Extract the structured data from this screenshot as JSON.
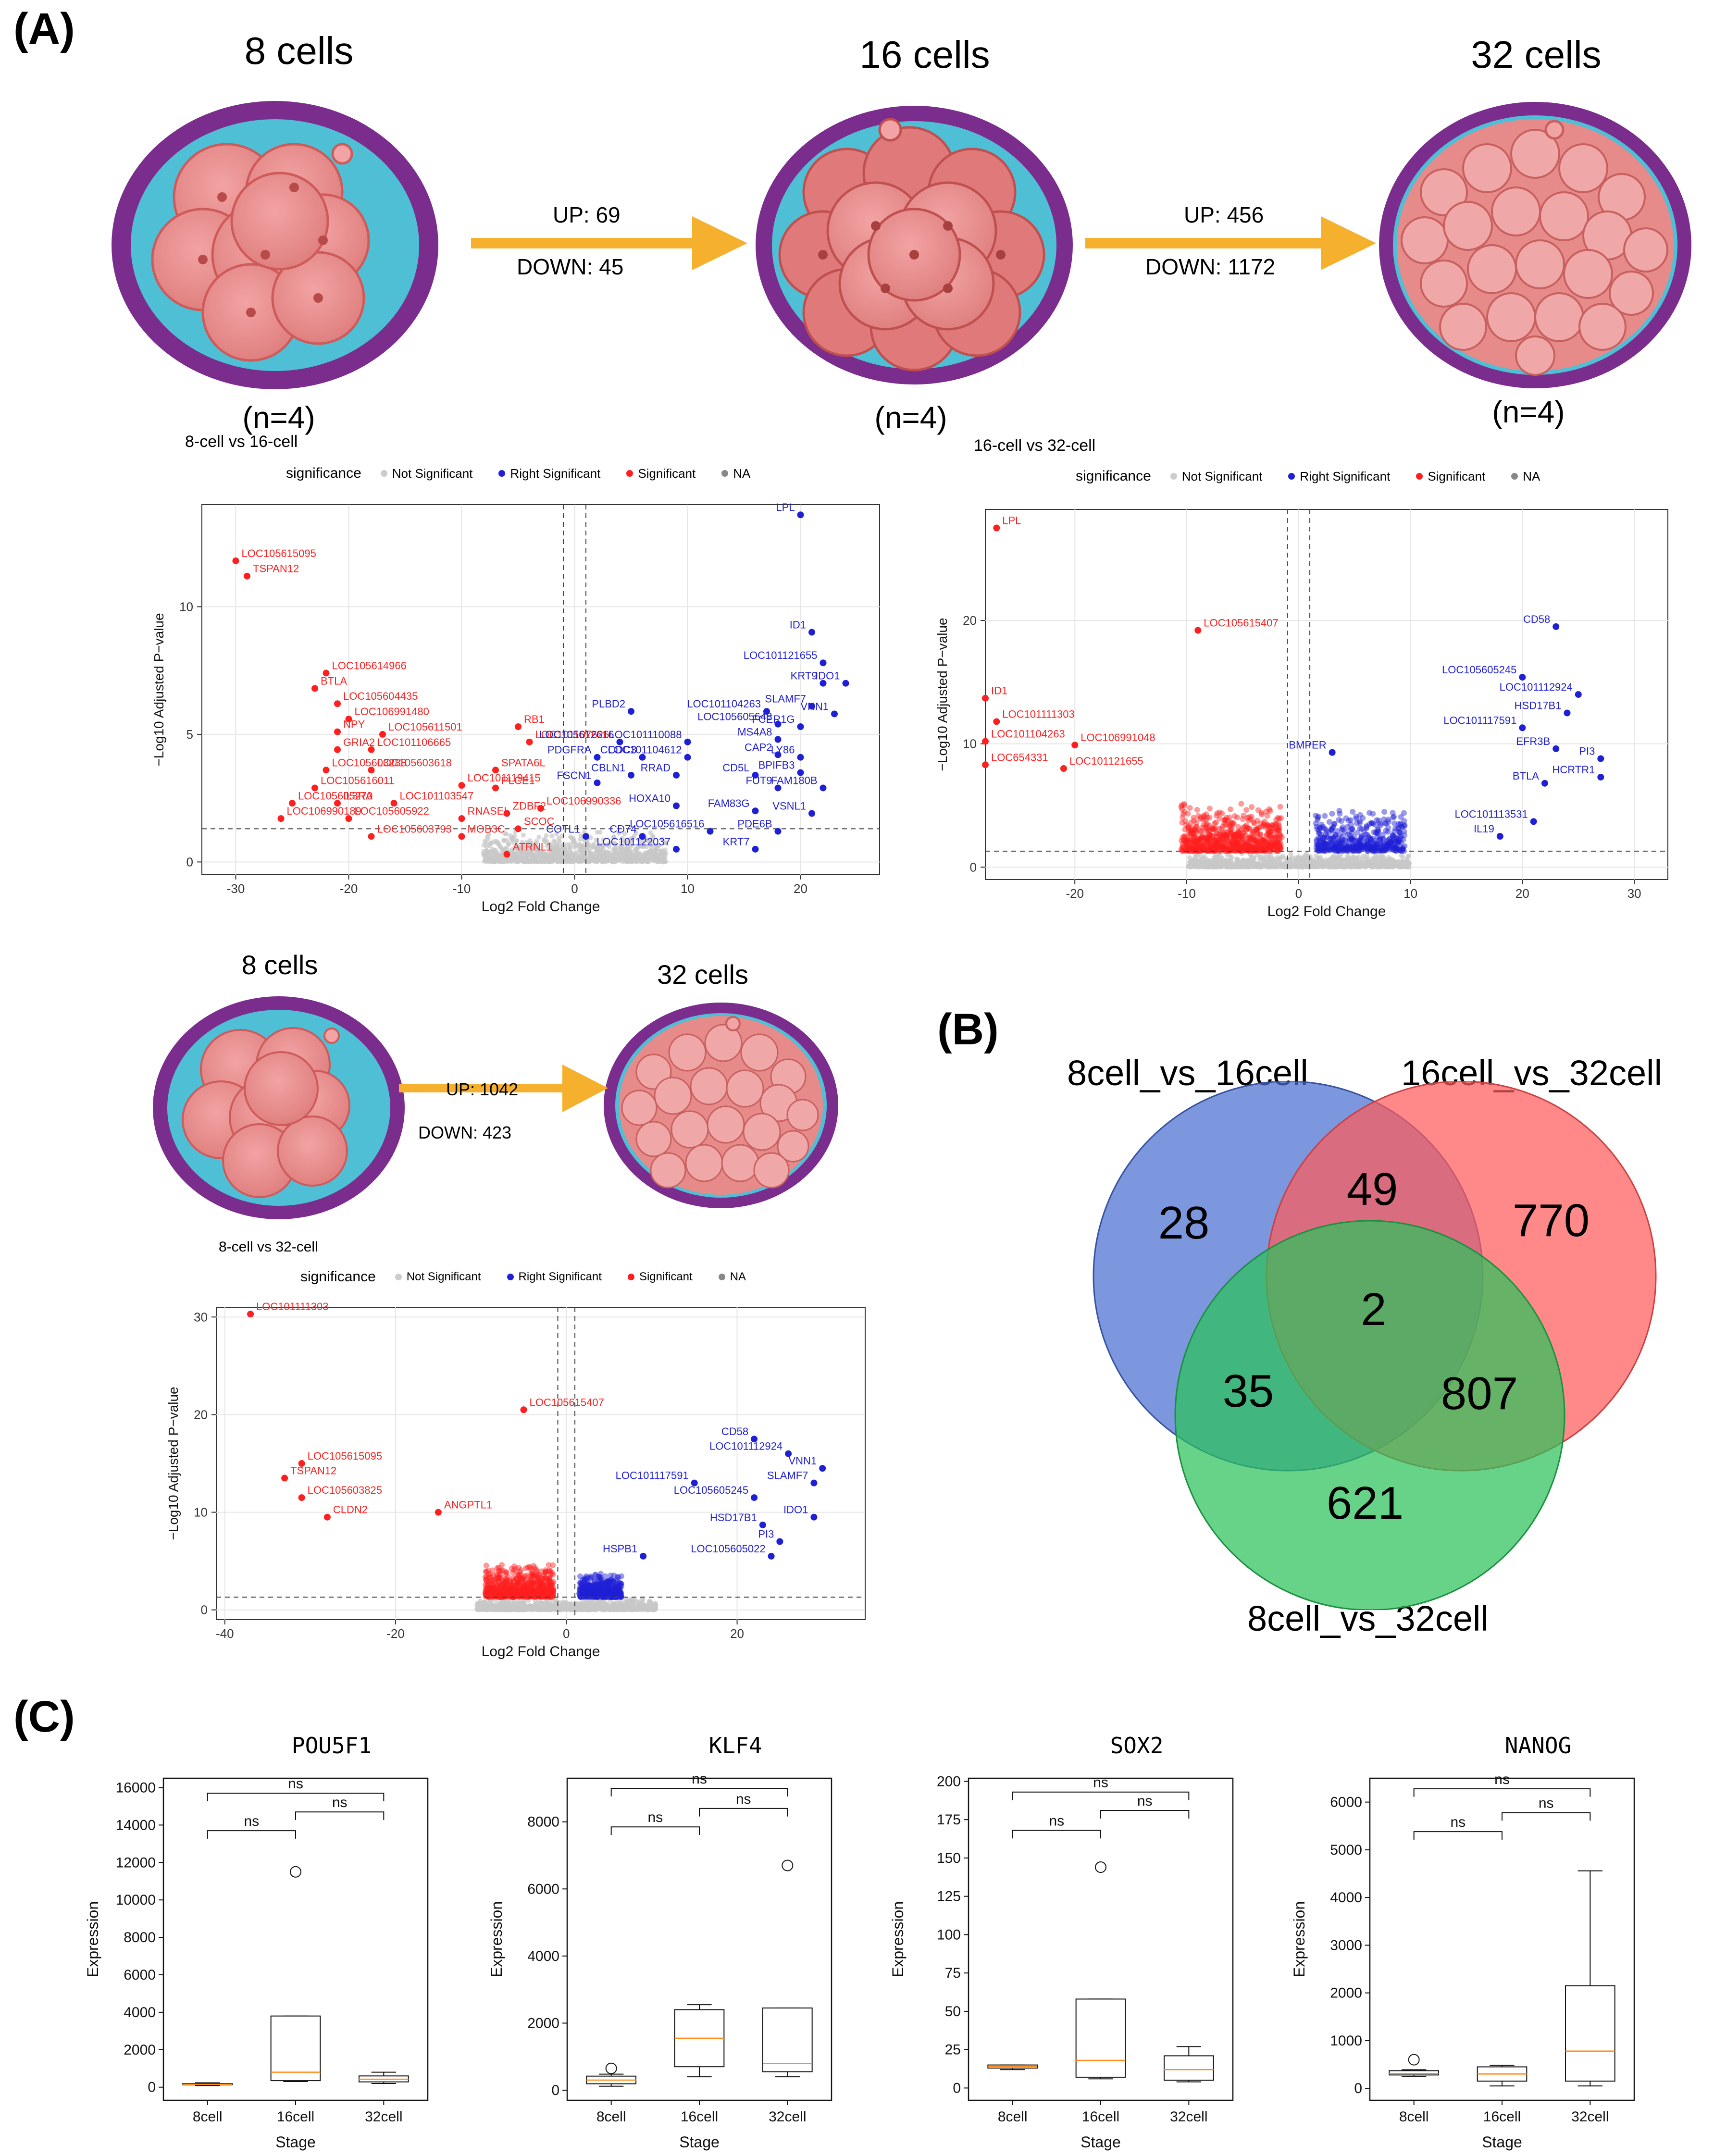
{
  "panels": {
    "a": "(A)",
    "b": "(B)",
    "c": "(C)"
  },
  "stages": {
    "s8": "8 cells",
    "s16": "16 cells",
    "s32": "32 cells",
    "s8b": "8 cells",
    "s32b": "32 cells",
    "n8": "(n=4)",
    "n16": "(n=4)",
    "n32": "(n=4)"
  },
  "arrows": {
    "a1_up": "UP: 69",
    "a1_down": "DOWN: 45",
    "a2_up": "UP: 456",
    "a2_down": "DOWN: 1172",
    "a3_up": "UP: 1042",
    "a3_down": "DOWN: 423"
  },
  "legend": {
    "title": "significance",
    "not_sig": "Not Significant",
    "right_sig": "Right Significant",
    "sig": "Significant",
    "na": "NA"
  },
  "volcano": [
    {
      "title": "8-cell vs 16-cell",
      "xlabel": "Log2 Fold Change",
      "ylabel": "−Log10 Adjusted P−value",
      "xlim": [
        -33,
        27
      ],
      "ylim": [
        -0.5,
        14
      ],
      "xticks": [
        -30,
        -20,
        -10,
        0,
        10,
        20
      ],
      "yticks": [
        0,
        5,
        10
      ],
      "vlines": [
        -1,
        1
      ],
      "hline": 1.3,
      "labels": [
        {
          "name": "LPL",
          "x": 20,
          "y": 13.6,
          "c": "blue"
        },
        {
          "name": "LOC105615095",
          "x": -30,
          "y": 11.8,
          "c": "red"
        },
        {
          "name": "TSPAN12",
          "x": -29,
          "y": 11.2,
          "c": "red"
        },
        {
          "name": "ID1",
          "x": 21,
          "y": 9.0,
          "c": "blue"
        },
        {
          "name": "LOC101121655",
          "x": 22,
          "y": 7.8,
          "c": "blue"
        },
        {
          "name": "KRT9",
          "x": 22,
          "y": 7.0,
          "c": "blue"
        },
        {
          "name": "IDO1",
          "x": 24,
          "y": 7.0,
          "c": "blue"
        },
        {
          "name": "LOC105614966",
          "x": -22,
          "y": 7.4,
          "c": "red"
        },
        {
          "name": "BTLA",
          "x": -23,
          "y": 6.8,
          "c": "red"
        },
        {
          "name": "LOC105604435",
          "x": -21,
          "y": 6.2,
          "c": "red"
        },
        {
          "name": "SLAMF7",
          "x": 21,
          "y": 6.1,
          "c": "blue"
        },
        {
          "name": "VNN1",
          "x": 23,
          "y": 5.8,
          "c": "blue"
        },
        {
          "name": "PLBD2",
          "x": 5,
          "y": 5.9,
          "c": "blue"
        },
        {
          "name": "LOC106991480",
          "x": -20,
          "y": 5.6,
          "c": "red"
        },
        {
          "name": "LOC101104263",
          "x": 17,
          "y": 5.9,
          "c": "blue"
        },
        {
          "name": "LOC105605648",
          "x": 18,
          "y": 5.4,
          "c": "blue"
        },
        {
          "name": "FCER1G",
          "x": 20,
          "y": 5.3,
          "c": "blue"
        },
        {
          "name": "RB1",
          "x": -5,
          "y": 5.3,
          "c": "red"
        },
        {
          "name": "NPY",
          "x": -21,
          "y": 5.1,
          "c": "red"
        },
        {
          "name": "LOC105611501",
          "x": -17,
          "y": 5.0,
          "c": "red"
        },
        {
          "name": "LOC101107626",
          "x": -4,
          "y": 4.7,
          "c": "red"
        },
        {
          "name": "LOC105612616",
          "x": 4,
          "y": 4.7,
          "c": "blue"
        },
        {
          "name": "LOC101110088",
          "x": 10,
          "y": 4.7,
          "c": "blue"
        },
        {
          "name": "MS4A8",
          "x": 18,
          "y": 4.8,
          "c": "blue"
        },
        {
          "name": "GRIA2",
          "x": -21,
          "y": 4.4,
          "c": "red"
        },
        {
          "name": "LOC101106665",
          "x": -18,
          "y": 4.4,
          "c": "red"
        },
        {
          "name": "PDGFRA",
          "x": 2,
          "y": 4.1,
          "c": "blue"
        },
        {
          "name": "CCDC3",
          "x": 6,
          "y": 4.1,
          "c": "blue"
        },
        {
          "name": "LOC101104612",
          "x": 10,
          "y": 4.1,
          "c": "blue"
        },
        {
          "name": "CAP2",
          "x": 18,
          "y": 4.2,
          "c": "blue"
        },
        {
          "name": "LY86",
          "x": 20,
          "y": 4.1,
          "c": "blue"
        },
        {
          "name": "LOC105603288",
          "x": -22,
          "y": 3.6,
          "c": "red"
        },
        {
          "name": "LOC105603618",
          "x": -18,
          "y": 3.6,
          "c": "red"
        },
        {
          "name": "SPATA6L",
          "x": -7,
          "y": 3.6,
          "c": "red"
        },
        {
          "name": "CBLN1",
          "x": 5,
          "y": 3.4,
          "c": "blue"
        },
        {
          "name": "RRAD",
          "x": 9,
          "y": 3.4,
          "c": "blue"
        },
        {
          "name": "CD5L",
          "x": 16,
          "y": 3.4,
          "c": "blue"
        },
        {
          "name": "BPIFB3",
          "x": 20,
          "y": 3.5,
          "c": "blue"
        },
        {
          "name": "LOC105616011",
          "x": -23,
          "y": 2.9,
          "c": "red"
        },
        {
          "name": "LOC101119415",
          "x": -10,
          "y": 3.0,
          "c": "red"
        },
        {
          "name": "PLCE1",
          "x": -7,
          "y": 2.9,
          "c": "red"
        },
        {
          "name": "FSCN1",
          "x": 2,
          "y": 3.1,
          "c": "blue"
        },
        {
          "name": "FUT9",
          "x": 18,
          "y": 2.9,
          "c": "blue"
        },
        {
          "name": "FAM180B",
          "x": 22,
          "y": 2.9,
          "c": "blue"
        },
        {
          "name": "LOC105605270",
          "x": -25,
          "y": 2.3,
          "c": "red"
        },
        {
          "name": "IL3RA",
          "x": -21,
          "y": 2.3,
          "c": "red"
        },
        {
          "name": "LOC101103547",
          "x": -16,
          "y": 2.3,
          "c": "red"
        },
        {
          "name": "LOC106990336",
          "x": -3,
          "y": 2.1,
          "c": "red"
        },
        {
          "name": "HOXA10",
          "x": 9,
          "y": 2.2,
          "c": "blue"
        },
        {
          "name": "FAM83G",
          "x": 16,
          "y": 2.0,
          "c": "blue"
        },
        {
          "name": "VSNL1",
          "x": 21,
          "y": 1.9,
          "c": "blue"
        },
        {
          "name": "LOC106990189",
          "x": -26,
          "y": 1.7,
          "c": "red"
        },
        {
          "name": "LOC105605922",
          "x": -20,
          "y": 1.7,
          "c": "red"
        },
        {
          "name": "RNASEL",
          "x": -10,
          "y": 1.7,
          "c": "red"
        },
        {
          "name": "ZDBF2",
          "x": -6,
          "y": 1.9,
          "c": "red"
        },
        {
          "name": "LOC105603793",
          "x": -18,
          "y": 1.0,
          "c": "red"
        },
        {
          "name": "MOB3C",
          "x": -10,
          "y": 1.0,
          "c": "red"
        },
        {
          "name": "SCOC",
          "x": -5,
          "y": 1.3,
          "c": "red"
        },
        {
          "name": "COTL1",
          "x": 1,
          "y": 1.0,
          "c": "blue"
        },
        {
          "name": "CD74",
          "x": 6,
          "y": 1.0,
          "c": "blue"
        },
        {
          "name": "LOC105616516",
          "x": 12,
          "y": 1.2,
          "c": "blue"
        },
        {
          "name": "PDE6B",
          "x": 18,
          "y": 1.2,
          "c": "blue"
        },
        {
          "name": "ATRNL1",
          "x": -6,
          "y": 0.3,
          "c": "red"
        },
        {
          "name": "LOC101122037",
          "x": 9,
          "y": 0.5,
          "c": "blue"
        },
        {
          "name": "KRT7",
          "x": 16,
          "y": 0.5,
          "c": "blue"
        }
      ]
    },
    {
      "title": "16-cell vs 32-cell",
      "xlabel": "Log2 Fold Change",
      "ylabel": "−Log10 Adjusted P−value",
      "xlim": [
        -28,
        33
      ],
      "ylim": [
        -1,
        29
      ],
      "xticks": [
        -20,
        -10,
        0,
        10,
        20,
        30
      ],
      "yticks": [
        0,
        10,
        20
      ],
      "vlines": [
        -1,
        1
      ],
      "hline": 1.3,
      "labels": [
        {
          "name": "LPL",
          "x": -27,
          "y": 27.5,
          "c": "red"
        },
        {
          "name": "LOC105615407",
          "x": -9,
          "y": 19.2,
          "c": "red"
        },
        {
          "name": "CD58",
          "x": 23,
          "y": 19.5,
          "c": "blue"
        },
        {
          "name": "LOC105605245",
          "x": 20,
          "y": 15.4,
          "c": "blue"
        },
        {
          "name": "LOC101112924",
          "x": 25,
          "y": 14.0,
          "c": "blue"
        },
        {
          "name": "ID1",
          "x": -28,
          "y": 13.7,
          "c": "red"
        },
        {
          "name": "HSD17B1",
          "x": 24,
          "y": 12.5,
          "c": "blue"
        },
        {
          "name": "LOC101111303",
          "x": -27,
          "y": 11.8,
          "c": "red"
        },
        {
          "name": "LOC101117591",
          "x": 20,
          "y": 11.3,
          "c": "blue"
        },
        {
          "name": "LOC101104263",
          "x": -28,
          "y": 10.2,
          "c": "red"
        },
        {
          "name": "LOC106991048",
          "x": -20,
          "y": 9.9,
          "c": "red"
        },
        {
          "name": "BMPER",
          "x": 3,
          "y": 9.3,
          "c": "blue"
        },
        {
          "name": "EFR3B",
          "x": 23,
          "y": 9.6,
          "c": "blue"
        },
        {
          "name": "PI3",
          "x": 27,
          "y": 8.8,
          "c": "blue"
        },
        {
          "name": "LOC654331",
          "x": -28,
          "y": 8.3,
          "c": "red"
        },
        {
          "name": "LOC101121655",
          "x": -21,
          "y": 8.0,
          "c": "red"
        },
        {
          "name": "HCRTR1",
          "x": 27,
          "y": 7.3,
          "c": "blue"
        },
        {
          "name": "BTLA",
          "x": 22,
          "y": 6.8,
          "c": "blue"
        },
        {
          "name": "LOC101113531",
          "x": 21,
          "y": 3.7,
          "c": "blue"
        },
        {
          "name": "IL19",
          "x": 18,
          "y": 2.5,
          "c": "blue"
        }
      ]
    },
    {
      "title": "8-cell vs 32-cell",
      "xlabel": "Log2 Fold Change",
      "ylabel": "−Log10 Adjusted P−value",
      "xlim": [
        -41,
        35
      ],
      "ylim": [
        -1,
        31
      ],
      "xticks": [
        -40,
        -20,
        0,
        20
      ],
      "yticks": [
        0,
        10,
        20,
        30
      ],
      "vlines": [
        -1,
        1
      ],
      "hline": 1.3,
      "labels": [
        {
          "name": "LOC101111303",
          "x": -37,
          "y": 30.3,
          "c": "red"
        },
        {
          "name": "LOC105615407",
          "x": -5,
          "y": 20.5,
          "c": "red"
        },
        {
          "name": "CD58",
          "x": 22,
          "y": 17.5,
          "c": "blue"
        },
        {
          "name": "LOC101112924",
          "x": 26,
          "y": 16.0,
          "c": "blue"
        },
        {
          "name": "LOC105615095",
          "x": -31,
          "y": 15.0,
          "c": "red"
        },
        {
          "name": "VNN1",
          "x": 30,
          "y": 14.5,
          "c": "blue"
        },
        {
          "name": "TSPAN12",
          "x": -33,
          "y": 13.5,
          "c": "red"
        },
        {
          "name": "LOC101117591",
          "x": 15,
          "y": 13.0,
          "c": "blue"
        },
        {
          "name": "SLAMF7",
          "x": 29,
          "y": 13.0,
          "c": "blue"
        },
        {
          "name": "LOC105603825",
          "x": -31,
          "y": 11.5,
          "c": "red"
        },
        {
          "name": "LOC105605245",
          "x": 22,
          "y": 11.5,
          "c": "blue"
        },
        {
          "name": "ANGPTL1",
          "x": -15,
          "y": 10.0,
          "c": "red"
        },
        {
          "name": "CLDN2",
          "x": -28,
          "y": 9.5,
          "c": "red"
        },
        {
          "name": "IDO1",
          "x": 29,
          "y": 9.5,
          "c": "blue"
        },
        {
          "name": "HSD17B1",
          "x": 23,
          "y": 8.7,
          "c": "blue"
        },
        {
          "name": "PI3",
          "x": 25,
          "y": 7.0,
          "c": "blue"
        },
        {
          "name": "HSPB1",
          "x": 9,
          "y": 5.5,
          "c": "blue"
        },
        {
          "name": "LOC105605022",
          "x": 24,
          "y": 5.5,
          "c": "blue"
        }
      ]
    }
  ],
  "venn": {
    "set_a": "8cell_vs_16cell",
    "set_b": "16cell_vs_32cell",
    "set_c": "8cell_vs_32cell",
    "only_a": "28",
    "ab": "49",
    "only_b": "770",
    "abc": "2",
    "ac": "35",
    "bc": "807",
    "only_c": "621",
    "colors": {
      "a": "#4a6fd0",
      "b": "#ff5c5c",
      "c": "#2bc25a"
    }
  },
  "chart_data": [
    {
      "type": "box",
      "title": "POU5F1",
      "xlabel": "Stage",
      "ylabel": "Expression",
      "categories": [
        "8cell",
        "16cell",
        "32cell"
      ],
      "ylim": [
        -700,
        16500
      ],
      "yticks": [
        0,
        2000,
        4000,
        6000,
        8000,
        10000,
        12000,
        14000,
        16000
      ],
      "boxes": [
        {
          "min": 80,
          "q1": 120,
          "median": 150,
          "q3": 190,
          "max": 230,
          "outliers": []
        },
        {
          "min": 300,
          "q1": 350,
          "median": 800,
          "q3": 3800,
          "max": 3800,
          "outliers": [
            11500
          ]
        },
        {
          "min": 200,
          "q1": 280,
          "median": 420,
          "q3": 600,
          "max": 800,
          "outliers": []
        }
      ],
      "brackets": [
        {
          "from": 0,
          "to": 2,
          "y": 15700,
          "label": "ns"
        },
        {
          "from": 0,
          "to": 1,
          "y": 13700,
          "label": "ns"
        },
        {
          "from": 1,
          "to": 2,
          "y": 14700,
          "label": "ns"
        }
      ]
    },
    {
      "type": "box",
      "title": "KLF4",
      "xlabel": "Stage",
      "ylabel": "Expression",
      "categories": [
        "8cell",
        "16cell",
        "32cell"
      ],
      "ylim": [
        -300,
        9300
      ],
      "yticks": [
        0,
        2000,
        4000,
        6000,
        8000
      ],
      "boxes": [
        {
          "min": 120,
          "q1": 190,
          "median": 300,
          "q3": 420,
          "max": 480,
          "outliers": [
            650
          ]
        },
        {
          "min": 400,
          "q1": 700,
          "median": 1550,
          "q3": 2400,
          "max": 2550,
          "outliers": []
        },
        {
          "min": 400,
          "q1": 550,
          "median": 800,
          "q3": 2450,
          "max": 2450,
          "outliers": [
            6700
          ]
        }
      ],
      "brackets": [
        {
          "from": 0,
          "to": 2,
          "y": 9000,
          "label": "ns"
        },
        {
          "from": 0,
          "to": 1,
          "y": 7850,
          "label": "ns"
        },
        {
          "from": 1,
          "to": 2,
          "y": 8400,
          "label": "ns"
        }
      ]
    },
    {
      "type": "box",
      "title": "SOX2",
      "xlabel": "Stage",
      "ylabel": "Expression",
      "categories": [
        "8cell",
        "16cell",
        "32cell"
      ],
      "ylim": [
        -8,
        202
      ],
      "yticks": [
        0,
        25,
        50,
        75,
        100,
        125,
        150,
        175,
        200
      ],
      "boxes": [
        {
          "min": 12,
          "q1": 13,
          "median": 14,
          "q3": 15,
          "max": 15,
          "outliers": []
        },
        {
          "min": 6,
          "q1": 7,
          "median": 18,
          "q3": 58,
          "max": 58,
          "outliers": [
            144
          ]
        },
        {
          "min": 4,
          "q1": 5,
          "median": 12,
          "q3": 21,
          "max": 27,
          "outliers": []
        }
      ],
      "brackets": [
        {
          "from": 0,
          "to": 2,
          "y": 193,
          "label": "ns"
        },
        {
          "from": 0,
          "to": 1,
          "y": 168,
          "label": "ns"
        },
        {
          "from": 1,
          "to": 2,
          "y": 181,
          "label": "ns"
        }
      ]
    },
    {
      "type": "box",
      "title": "NANOG",
      "xlabel": "Stage",
      "ylabel": "Expression",
      "categories": [
        "8cell",
        "16cell",
        "32cell"
      ],
      "ylim": [
        -250,
        6500
      ],
      "yticks": [
        0,
        1000,
        2000,
        3000,
        4000,
        5000,
        6000
      ],
      "boxes": [
        {
          "min": 250,
          "q1": 280,
          "median": 310,
          "q3": 370,
          "max": 390,
          "outliers": [
            600
          ]
        },
        {
          "min": 50,
          "q1": 150,
          "median": 300,
          "q3": 450,
          "max": 480,
          "outliers": []
        },
        {
          "min": 50,
          "q1": 150,
          "median": 780,
          "q3": 2150,
          "max": 4560,
          "outliers": []
        }
      ],
      "brackets": [
        {
          "from": 0,
          "to": 2,
          "y": 6280,
          "label": "ns"
        },
        {
          "from": 0,
          "to": 1,
          "y": 5380,
          "label": "ns"
        },
        {
          "from": 1,
          "to": 2,
          "y": 5780,
          "label": "ns"
        }
      ]
    }
  ]
}
